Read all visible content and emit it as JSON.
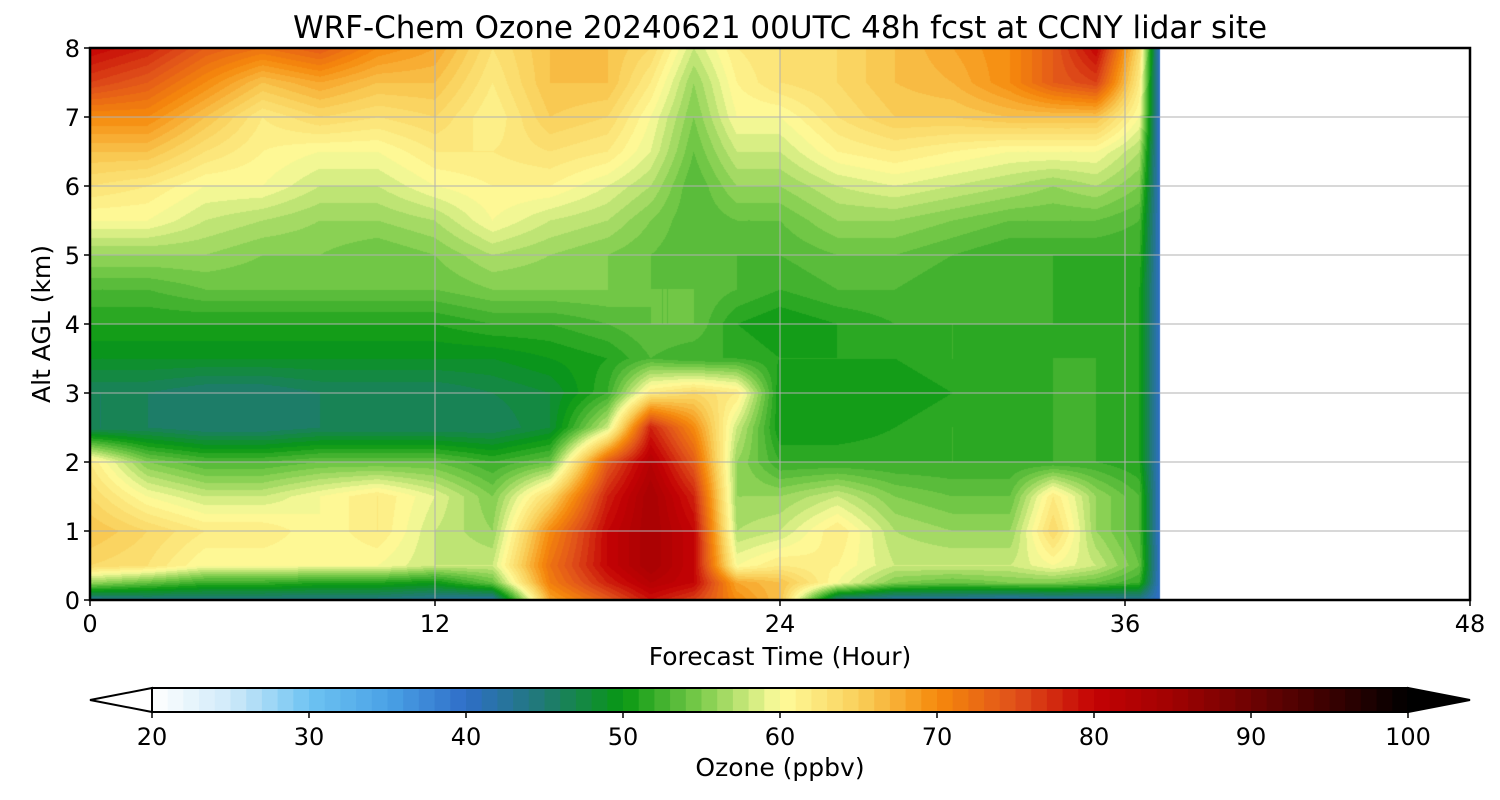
{
  "chart_data": {
    "type": "heatmap",
    "title": "WRF-Chem Ozone  20240621 00UTC 48h fcst at CCNY lidar site",
    "xlabel": "Forecast Time (Hour)",
    "ylabel": "Alt AGL (km)",
    "xlim": [
      0,
      48
    ],
    "ylim": [
      0,
      8
    ],
    "xticks": [
      "0",
      "12",
      "24",
      "36",
      "48"
    ],
    "yticks": [
      "0",
      "1",
      "2",
      "3",
      "4",
      "5",
      "6",
      "7",
      "8"
    ],
    "grid": true,
    "data_end_hour": 37.2,
    "colorbar": {
      "label": "Ozone  (ppbv)",
      "min": 20,
      "max": 100,
      "ticks": [
        "20",
        "30",
        "40",
        "50",
        "60",
        "70",
        "80",
        "90",
        "100"
      ],
      "extend": "both",
      "stops": [
        {
          "v": 20,
          "c": "#ffffff"
        },
        {
          "v": 25,
          "c": "#cfeaf9"
        },
        {
          "v": 30,
          "c": "#6ec3f2"
        },
        {
          "v": 35,
          "c": "#4aa2e6"
        },
        {
          "v": 40,
          "c": "#2f6ec8"
        },
        {
          "v": 45,
          "c": "#1f7a72"
        },
        {
          "v": 50,
          "c": "#089812"
        },
        {
          "v": 55,
          "c": "#7dcc4c"
        },
        {
          "v": 60,
          "c": "#fffc9c"
        },
        {
          "v": 65,
          "c": "#f9d05a"
        },
        {
          "v": 70,
          "c": "#f68a0c"
        },
        {
          "v": 75,
          "c": "#e0501a"
        },
        {
          "v": 80,
          "c": "#c40204"
        },
        {
          "v": 85,
          "c": "#a00202"
        },
        {
          "v": 90,
          "c": "#6e0202"
        },
        {
          "v": 95,
          "c": "#3a0101"
        },
        {
          "v": 100,
          "c": "#000000"
        }
      ]
    },
    "hours": [
      0,
      2,
      4,
      6,
      8,
      10,
      12,
      14,
      16,
      18,
      19.5,
      21,
      22.5,
      24,
      26,
      28,
      30,
      32,
      33.5,
      35,
      36.5,
      37.2
    ],
    "levels_km": [
      0,
      0.25,
      0.5,
      1,
      1.5,
      2,
      2.5,
      3,
      3.5,
      4,
      4.5,
      5,
      5.5,
      6,
      6.5,
      7,
      7.5,
      8
    ],
    "ozone_ppbv": [
      [
        43,
        44,
        44,
        44,
        44,
        44,
        43,
        42,
        68,
        74,
        79,
        76,
        70,
        66,
        44,
        42,
        42,
        41,
        42,
        42,
        43,
        40
      ],
      [
        56,
        54,
        52,
        52,
        51,
        51,
        50,
        54,
        71,
        78,
        82,
        80,
        68,
        66,
        60,
        55,
        54,
        55,
        55,
        54,
        52,
        40
      ],
      [
        64,
        63,
        60,
        60,
        60,
        60,
        58,
        58,
        72,
        80,
        84,
        80,
        60,
        62,
        61,
        58,
        58,
        58,
        60,
        58,
        54,
        40
      ],
      [
        66,
        64,
        62,
        62,
        60,
        62,
        58,
        56,
        70,
        80,
        84,
        80,
        57,
        58,
        62,
        57,
        56,
        56,
        64,
        56,
        53,
        40
      ],
      [
        64,
        60,
        58,
        58,
        60,
        62,
        59,
        55,
        64,
        78,
        84,
        78,
        56,
        56,
        58,
        55,
        54,
        54,
        62,
        56,
        53,
        40
      ],
      [
        62,
        55,
        53,
        53,
        54,
        54,
        54,
        52,
        54,
        74,
        82,
        74,
        56,
        52,
        52,
        52,
        52,
        52,
        52,
        52,
        51,
        40
      ],
      [
        46,
        46,
        45,
        45,
        46,
        46,
        46,
        46,
        48,
        58,
        78,
        70,
        58,
        50,
        50,
        51,
        52,
        51,
        52,
        52,
        51,
        40
      ],
      [
        46,
        46,
        45,
        45,
        46,
        46,
        46,
        47,
        48,
        52,
        62,
        64,
        62,
        50,
        50,
        50,
        51,
        51,
        52,
        52,
        51,
        40
      ],
      [
        49,
        49,
        49,
        49,
        49,
        49,
        49,
        49,
        50,
        51,
        53,
        52,
        52,
        51,
        51,
        51,
        52,
        51,
        52,
        52,
        51,
        40
      ],
      [
        51,
        51,
        51,
        51,
        51,
        51,
        51,
        52,
        52,
        53,
        54,
        54,
        51,
        50,
        51,
        52,
        52,
        52,
        52,
        51,
        51,
        40
      ],
      [
        53,
        53,
        54,
        54,
        54,
        54,
        54,
        55,
        55,
        55,
        54,
        54,
        53,
        52,
        53,
        53,
        52,
        52,
        52,
        51,
        51,
        40
      ],
      [
        56,
        56,
        56,
        55,
        55,
        54,
        55,
        57,
        56,
        55,
        54,
        53,
        53,
        53,
        54,
        54,
        53,
        52,
        52,
        52,
        52,
        40
      ],
      [
        60,
        60,
        58,
        57,
        56,
        56,
        57,
        60,
        58,
        57,
        55,
        53,
        54,
        54,
        56,
        56,
        55,
        54,
        54,
        54,
        53,
        40
      ],
      [
        63,
        62,
        60,
        60,
        58,
        58,
        60,
        61,
        61,
        59,
        57,
        53,
        56,
        56,
        58,
        59,
        58,
        57,
        56,
        57,
        55,
        40
      ],
      [
        66,
        66,
        63,
        61,
        60,
        60,
        62,
        62,
        63,
        62,
        59,
        54,
        58,
        58,
        61,
        62,
        61,
        60,
        60,
        60,
        57,
        40
      ],
      [
        70,
        70,
        66,
        62,
        64,
        63,
        64,
        61,
        65,
        64,
        60,
        55,
        60,
        60,
        63,
        65,
        65,
        66,
        66,
        66,
        60,
        40
      ],
      [
        76,
        74,
        70,
        66,
        68,
        66,
        66,
        62,
        66,
        66,
        62,
        56,
        61,
        63,
        64,
        66,
        67,
        70,
        74,
        76,
        62,
        40
      ],
      [
        80,
        78,
        74,
        72,
        74,
        70,
        68,
        63,
        66,
        66,
        64,
        58,
        62,
        63,
        64,
        66,
        68,
        70,
        74,
        80,
        64,
        40
      ]
    ]
  }
}
